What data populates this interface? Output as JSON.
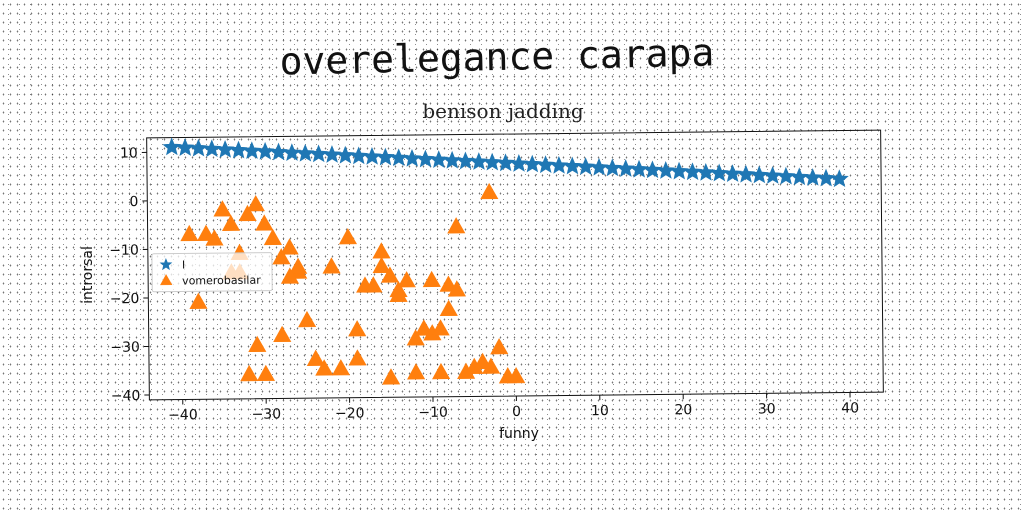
{
  "chart_data": {
    "type": "scatter",
    "title": "overelegance carapa",
    "subtitle": "benison jadding",
    "xlabel": "funny",
    "ylabel": "introrsal",
    "xlim": [
      -44,
      44
    ],
    "ylim": [
      -41,
      13
    ],
    "xticks": [
      -40,
      -30,
      -20,
      -10,
      0,
      10,
      20,
      30,
      40
    ],
    "yticks": [
      10,
      0,
      -10,
      -20,
      -30,
      -40
    ],
    "grid": false,
    "legend_position": "center-left",
    "series": [
      {
        "name": "I",
        "marker": "star",
        "color": "#1f77b4",
        "x": [
          -41.0,
          -39.4,
          -37.8,
          -36.2,
          -34.6,
          -33.0,
          -31.4,
          -29.8,
          -28.2,
          -26.6,
          -25.0,
          -23.4,
          -21.8,
          -20.2,
          -18.6,
          -17.0,
          -15.4,
          -13.8,
          -12.2,
          -10.6,
          -9.0,
          -7.4,
          -5.8,
          -4.2,
          -2.6,
          -1.0,
          0.6,
          2.2,
          3.8,
          5.4,
          7.0,
          8.6,
          10.2,
          11.8,
          13.4,
          15.0,
          16.6,
          18.2,
          19.8,
          21.4,
          23.0,
          24.6,
          26.2,
          27.8,
          29.4,
          31.0,
          32.6,
          34.2,
          35.8,
          37.4,
          39.0
        ],
        "y": [
          11.0,
          10.84,
          10.68,
          10.52,
          10.36,
          10.2,
          10.04,
          9.88,
          9.72,
          9.56,
          9.4,
          9.24,
          9.08,
          8.92,
          8.76,
          8.6,
          8.44,
          8.28,
          8.12,
          7.96,
          7.8,
          7.64,
          7.48,
          7.32,
          7.16,
          7.0,
          6.84,
          6.68,
          6.52,
          6.36,
          6.2,
          6.04,
          5.88,
          5.72,
          5.56,
          5.4,
          5.24,
          5.08,
          4.92,
          4.76,
          4.6,
          4.44,
          4.28,
          4.12,
          3.96,
          3.8,
          3.64,
          3.48,
          3.32,
          3.16,
          3.0
        ]
      },
      {
        "name": "vomerobasilar",
        "marker": "triangle",
        "color": "#ff7f0e",
        "x": [
          -39,
          -37,
          -36,
          -35,
          -34,
          -33,
          -32,
          -31,
          -30,
          -29,
          -28,
          -38,
          -34,
          -33,
          -32,
          -30,
          -27,
          -26,
          -26,
          -25,
          -24,
          -22,
          -21,
          -20,
          -19,
          -18,
          -17,
          -16,
          -16,
          -15,
          -15,
          -14,
          -14,
          -13,
          -12,
          -11,
          -10,
          -10,
          -9,
          -8,
          -8,
          -7,
          -7,
          -6,
          -5,
          -4,
          -3,
          -2,
          -1,
          -31,
          -28,
          -27,
          -23,
          -19,
          -9,
          -3,
          0,
          -12
        ],
        "y": [
          -7,
          -7,
          -8,
          -2,
          -5,
          -11,
          -3,
          -1,
          -5,
          -8,
          -12,
          -21,
          -15,
          -15,
          -36,
          -36,
          -10,
          -15,
          -14,
          -25,
          -33,
          -14,
          -35,
          -8,
          -33,
          -18,
          -18,
          -14,
          -11,
          -16,
          -37,
          -20,
          -19,
          -17,
          -29,
          -27,
          -17,
          -28,
          -36,
          -23,
          -18,
          -6,
          -19,
          -36,
          -35,
          -34,
          1,
          -31,
          -37,
          -30,
          -28,
          -16,
          -35,
          -27,
          -27,
          -35,
          -37,
          -36
        ]
      }
    ],
    "legend": [
      "I",
      "vomerobasilar"
    ]
  }
}
